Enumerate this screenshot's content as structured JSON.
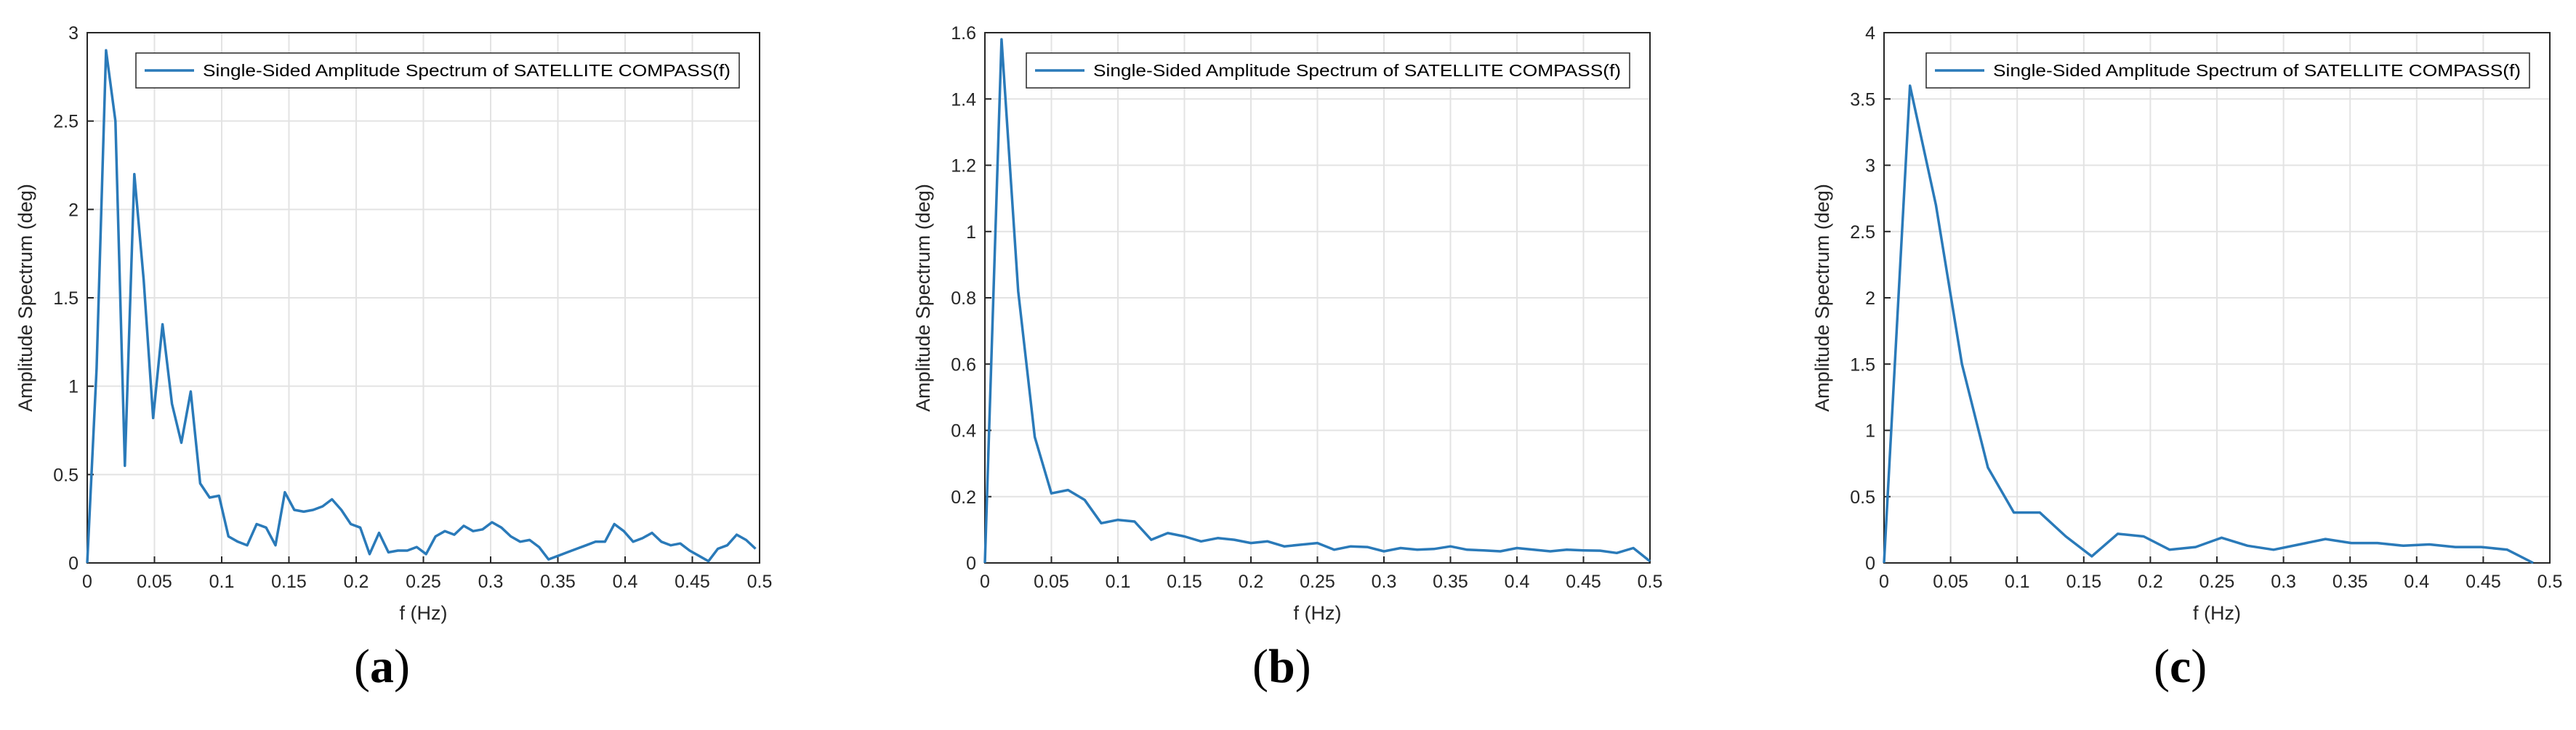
{
  "colors": {
    "line": "#2a7ab9",
    "grid": "#e3e3e3",
    "axis": "#262626",
    "text": "#262626"
  },
  "chart_data": [
    {
      "type": "line",
      "panel_label": "a",
      "xlabel": "f (Hz)",
      "ylabel": "Amplitude Spectrum (deg)",
      "xlim": [
        0,
        0.5
      ],
      "ylim": [
        0,
        3
      ],
      "xticks": [
        "0",
        "0.05",
        "0.1",
        "0.15",
        "0.2",
        "0.25",
        "0.3",
        "0.35",
        "0.4",
        "0.45",
        "0.5"
      ],
      "yticks": [
        "0",
        "0.5",
        "1",
        "1.5",
        "2",
        "2.5",
        "3"
      ],
      "grid": true,
      "legend_position": "top-right",
      "series": [
        {
          "name": "Single-Sided Amplitude Spectrum of SATELLITE COMPASS(f)",
          "x": [
            0,
            0.007,
            0.014,
            0.021,
            0.028,
            0.035,
            0.042,
            0.049,
            0.056,
            0.063,
            0.07,
            0.077,
            0.084,
            0.091,
            0.098,
            0.105,
            0.112,
            0.119,
            0.126,
            0.133,
            0.14,
            0.147,
            0.154,
            0.161,
            0.168,
            0.175,
            0.182,
            0.189,
            0.196,
            0.203,
            0.21,
            0.217,
            0.224,
            0.231,
            0.238,
            0.245,
            0.252,
            0.259,
            0.266,
            0.273,
            0.28,
            0.287,
            0.294,
            0.301,
            0.308,
            0.315,
            0.322,
            0.329,
            0.336,
            0.343,
            0.35,
            0.357,
            0.364,
            0.371,
            0.378,
            0.385,
            0.392,
            0.399,
            0.406,
            0.413,
            0.42,
            0.427,
            0.434,
            0.441,
            0.448,
            0.455,
            0.462,
            0.469,
            0.476,
            0.483,
            0.49,
            0.497
          ],
          "values": [
            0.0,
            1.1,
            2.9,
            2.5,
            0.55,
            2.2,
            1.6,
            0.82,
            1.35,
            0.9,
            0.68,
            0.97,
            0.45,
            0.37,
            0.38,
            0.15,
            0.12,
            0.1,
            0.22,
            0.2,
            0.1,
            0.4,
            0.3,
            0.29,
            0.3,
            0.32,
            0.36,
            0.3,
            0.22,
            0.2,
            0.05,
            0.17,
            0.06,
            0.07,
            0.07,
            0.09,
            0.05,
            0.15,
            0.18,
            0.16,
            0.21,
            0.18,
            0.19,
            0.23,
            0.2,
            0.15,
            0.12,
            0.13,
            0.09,
            0.02,
            0.04,
            0.06,
            0.08,
            0.1,
            0.12,
            0.12,
            0.22,
            0.18,
            0.12,
            0.14,
            0.17,
            0.12,
            0.1,
            0.11,
            0.07,
            0.04,
            0.01,
            0.08,
            0.1,
            0.16,
            0.13,
            0.08
          ]
        }
      ]
    },
    {
      "type": "line",
      "panel_label": "b",
      "xlabel": "f (Hz)",
      "ylabel": "Amplitude Spectrum (deg)",
      "xlim": [
        0,
        0.5
      ],
      "ylim": [
        0,
        1.6
      ],
      "xticks": [
        "0",
        "0.05",
        "0.1",
        "0.15",
        "0.2",
        "0.25",
        "0.3",
        "0.35",
        "0.4",
        "0.45",
        "0.5"
      ],
      "yticks": [
        "0",
        "0.2",
        "0.4",
        "0.6",
        "0.8",
        "1",
        "1.2",
        "1.4",
        "1.6"
      ],
      "grid": true,
      "legend_position": "top-right",
      "series": [
        {
          "name": "Single-Sided Amplitude Spectrum of SATELLITE COMPASS(f)",
          "x": [
            0,
            0.0125,
            0.025,
            0.0375,
            0.05,
            0.0625,
            0.075,
            0.0875,
            0.1,
            0.1125,
            0.125,
            0.1375,
            0.15,
            0.1625,
            0.175,
            0.1875,
            0.2,
            0.2125,
            0.225,
            0.2375,
            0.25,
            0.2625,
            0.275,
            0.2875,
            0.3,
            0.3125,
            0.325,
            0.3375,
            0.35,
            0.3625,
            0.375,
            0.3875,
            0.4,
            0.4125,
            0.425,
            0.4375,
            0.45,
            0.4625,
            0.475,
            0.4875,
            0.5
          ],
          "values": [
            0.0,
            1.58,
            0.82,
            0.38,
            0.21,
            0.22,
            0.19,
            0.12,
            0.13,
            0.125,
            0.07,
            0.09,
            0.08,
            0.065,
            0.075,
            0.07,
            0.06,
            0.065,
            0.05,
            0.055,
            0.06,
            0.04,
            0.05,
            0.048,
            0.035,
            0.045,
            0.04,
            0.042,
            0.05,
            0.04,
            0.038,
            0.035,
            0.045,
            0.04,
            0.035,
            0.04,
            0.038,
            0.037,
            0.03,
            0.045,
            0.005
          ]
        }
      ]
    },
    {
      "type": "line",
      "panel_label": "c",
      "xlabel": "f (Hz)",
      "ylabel": "Amplitude Spectrum (deg)",
      "xlim": [
        0,
        0.5
      ],
      "ylim": [
        0,
        4
      ],
      "xticks": [
        "0",
        "0.05",
        "0.1",
        "0.15",
        "0.2",
        "0.25",
        "0.3",
        "0.35",
        "0.4",
        "0.45",
        "0.5"
      ],
      "yticks": [
        "0",
        "0.5",
        "1",
        "1.5",
        "2",
        "2.5",
        "3",
        "3.5",
        "4"
      ],
      "grid": true,
      "legend_position": "top-right",
      "series": [
        {
          "name": "Single-Sided Amplitude Spectrum of SATELLITE COMPASS(f)",
          "x": [
            0,
            0.0195,
            0.039,
            0.0585,
            0.078,
            0.0975,
            0.117,
            0.1365,
            0.156,
            0.1755,
            0.195,
            0.2145,
            0.234,
            0.2535,
            0.273,
            0.2925,
            0.312,
            0.3315,
            0.351,
            0.3705,
            0.39,
            0.4095,
            0.429,
            0.4485,
            0.468,
            0.4875
          ],
          "values": [
            0.0,
            3.6,
            2.7,
            1.5,
            0.72,
            0.38,
            0.38,
            0.2,
            0.05,
            0.22,
            0.2,
            0.1,
            0.12,
            0.19,
            0.13,
            0.1,
            0.14,
            0.18,
            0.15,
            0.15,
            0.13,
            0.14,
            0.12,
            0.12,
            0.1,
            0.0
          ]
        }
      ]
    }
  ]
}
